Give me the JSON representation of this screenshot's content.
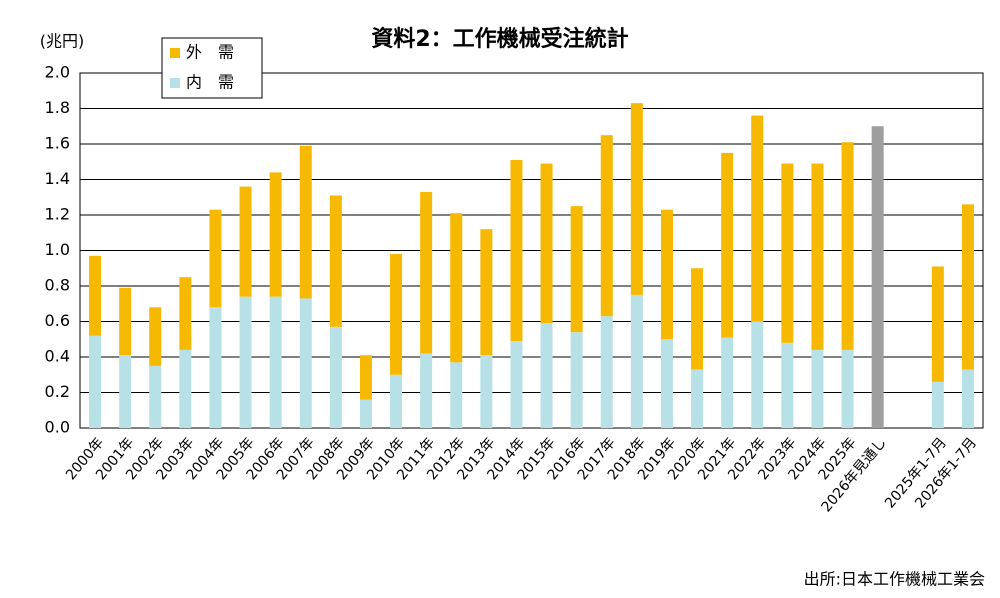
{
  "chart_data": {
    "type": "stacked_bar",
    "title": "資料2：工作機械受注統計",
    "y_unit": "(兆円)",
    "source": "出所:日本工作機械工業会",
    "categories": [
      "2000年",
      "2001年",
      "2002年",
      "2003年",
      "2004年",
      "2005年",
      "2006年",
      "2007年",
      "2008年",
      "2009年",
      "2010年",
      "2011年",
      "2012年",
      "2013年",
      "2014年",
      "2015年",
      "2016年",
      "2017年",
      "2018年",
      "2019年",
      "2020年",
      "2021年",
      "2022年",
      "2023年",
      "2024年",
      "2025年",
      "2026年見通し",
      null,
      "2025年1-7月",
      "2026年1-7月"
    ],
    "series": [
      {
        "name": "内　需",
        "color": "#b7e1e7",
        "values": [
          0.52,
          0.41,
          0.35,
          0.44,
          0.68,
          0.74,
          0.74,
          0.73,
          0.57,
          0.16,
          0.3,
          0.42,
          0.37,
          0.41,
          0.49,
          0.59,
          0.54,
          0.63,
          0.75,
          0.5,
          0.33,
          0.51,
          0.6,
          0.48,
          0.44,
          0.44,
          null,
          null,
          0.26,
          0.33
        ]
      },
      {
        "name": "外　需",
        "color": "#f7b900",
        "values": [
          0.45,
          0.38,
          0.33,
          0.41,
          0.55,
          0.62,
          0.7,
          0.86,
          0.74,
          0.25,
          0.68,
          0.91,
          0.84,
          0.71,
          1.02,
          0.9,
          0.71,
          1.02,
          1.08,
          0.73,
          0.57,
          1.04,
          1.16,
          1.01,
          1.05,
          1.17,
          null,
          null,
          0.65,
          0.93
        ]
      },
      {
        "color": "#9e9e9e",
        "values": [
          null,
          null,
          null,
          null,
          null,
          null,
          null,
          null,
          null,
          null,
          null,
          null,
          null,
          null,
          null,
          null,
          null,
          null,
          null,
          null,
          null,
          null,
          null,
          null,
          null,
          null,
          1.7,
          null,
          null,
          null
        ]
      }
    ],
    "ylim": [
      0,
      2.0
    ],
    "yticks": [
      {
        "value": 0,
        "label": "0.0"
      },
      0.2,
      0.4,
      0.6,
      0.8,
      {
        "value": 1,
        "label": "1.0"
      },
      1.2,
      1.4,
      1.6,
      1.8,
      {
        "value": 2,
        "label": "2.0"
      }
    ],
    "grid": true
  }
}
